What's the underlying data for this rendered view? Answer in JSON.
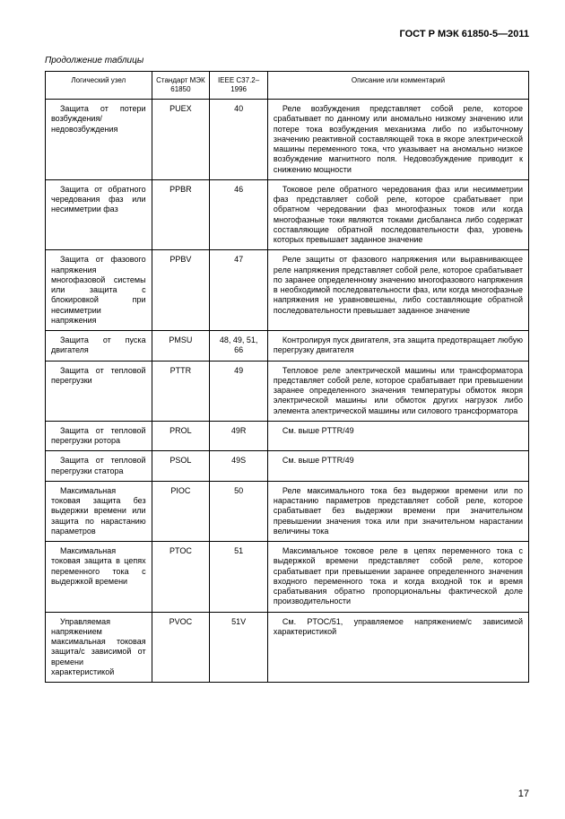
{
  "document": {
    "header": "ГОСТ Р МЭК 61850-5—2011",
    "continuation": "Продолжение таблицы",
    "page_number": "17"
  },
  "table": {
    "columns": [
      "Логический узел",
      "Стандарт МЭК 61850",
      "IEEE C37.2–1996",
      "Описание или комментарий"
    ],
    "rows": [
      {
        "node": "Защита от потери возбуждения/недовозбуждения",
        "std": "PUEX",
        "ieee": "40",
        "desc": "Реле возбуждения представляет собой реле, которое срабатывает по данному или аномально низкому значению или потере тока возбуждения механизма либо по избыточному значению реактивной составляющей тока в якоре электрической машины переменного тока, что указывает на аномально низкое возбуждение магнитного поля. Недовозбуждение приводит к снижению мощности"
      },
      {
        "node": "Защита от обратного чередования фаз или несимметрии фаз",
        "std": "PPBR",
        "ieee": "46",
        "desc": "Токовое реле обратного чередования фаз или несимметрии фаз представляет собой реле, которое срабатывает при обратном чередовании фаз многофазных токов или когда многофазные токи являются токами дисбаланса либо содержат составляющие обратной последовательности фаз, уровень которых превышает заданное значение"
      },
      {
        "node": "Защита от фазового напряжения многофазовой системы или защита с блокировкой при несимметрии напряжения",
        "std": "PPBV",
        "ieee": "47",
        "desc": "Реле защиты от фазового напряжения или выравнивающее реле напряжения представляет собой реле, которое срабатывает по заранее определенному значению многофазового напряжения в необходимой последовательности фаз, или когда многофазные напряжения не уравновешены, либо составляющие обратной последовательности превышает заданное значение"
      },
      {
        "node": "Защита от пуска двигателя",
        "std": "PMSU",
        "ieee": "48, 49, 51, 66",
        "desc": "Контролируя пуск двигателя, эта защита предотвращает любую перегрузку двигателя"
      },
      {
        "node": "Защита от тепловой перегрузки",
        "std": "PTTR",
        "ieee": "49",
        "desc": "Тепловое реле электрической машины или трансформатора представляет собой реле, которое срабатывает при превышении заранее определенного значения температуры обмоток якоря электрической машины или обмоток других нагрузок либо элемента электрической машины или силового трансформатора"
      },
      {
        "node": "Защита от тепловой перегрузки ротора",
        "std": "PROL",
        "ieee": "49R",
        "desc": "См. выше PTTR/49"
      },
      {
        "node": "Защита от тепловой перегрузки статора",
        "std": "PSOL",
        "ieee": "49S",
        "desc": "См. выше PTTR/49"
      },
      {
        "node": "Максимальная токовая защита без выдержки времени или защита по нарастанию параметров",
        "std": "PIOC",
        "ieee": "50",
        "desc": "Реле максимального тока без выдержки времени или по нарастанию параметров представляет собой реле, которое срабатывает без выдержки времени при значительном превышении значения тока или при значительном нарастании величины тока"
      },
      {
        "node": "Максимальная токовая защита в цепях переменного тока с выдержкой времени",
        "std": "PTOC",
        "ieee": "51",
        "desc": "Максимальное токовое реле в цепях переменного тока с выдержкой времени представляет собой реле, которое срабатывает при превышении заранее определенного значения входного переменного тока и когда входной ток и время срабатывания обратно пропорциональны фактической доле производительности"
      },
      {
        "node": "Управляемая напряжением максимальная токовая защита/с зависимой от времени характеристикой",
        "std": "PVOC",
        "ieee": "51V",
        "desc": "См. PTOC/51, управляемое напряжением/с зависимой характеристикой"
      }
    ]
  }
}
